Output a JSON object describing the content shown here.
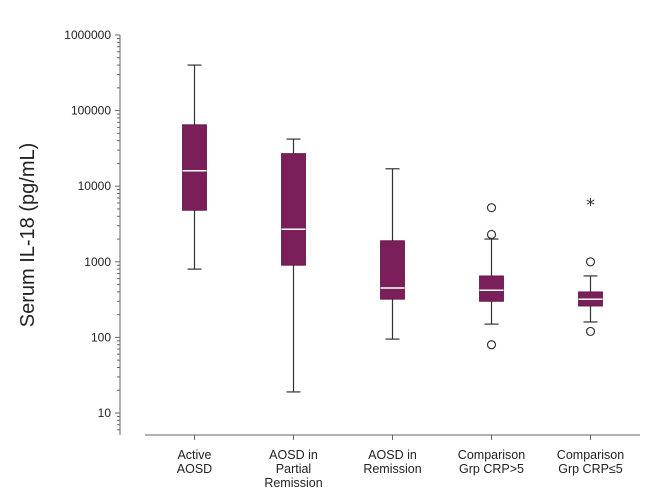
{
  "chart_data": {
    "type": "boxplot",
    "ylabel": "Serum IL-18 (pg/mL)",
    "yscale": "log",
    "ylim": [
      10,
      1000000
    ],
    "yticks": [
      {
        "value": 10,
        "label": "10"
      },
      {
        "value": 100,
        "label": "100"
      },
      {
        "value": 1000,
        "label": "1000"
      },
      {
        "value": 10000,
        "label": "10000"
      },
      {
        "value": 100000,
        "label": "100000"
      },
      {
        "value": 1000000,
        "label": "1000000"
      }
    ],
    "box_color": "#7b1f5a",
    "categories": [
      {
        "label_lines": [
          "Active",
          "AOSD"
        ],
        "whisker_low": 800,
        "q1": 4800,
        "median": 16000,
        "q3": 65000,
        "whisker_high": 400000,
        "outliers": [],
        "extremes": []
      },
      {
        "label_lines": [
          "AOSD in",
          "Partial",
          "Remission"
        ],
        "whisker_low": 19,
        "q1": 900,
        "median": 2700,
        "q3": 27000,
        "whisker_high": 42000,
        "outliers": [],
        "extremes": []
      },
      {
        "label_lines": [
          "AOSD in",
          "Remission"
        ],
        "whisker_low": 95,
        "q1": 320,
        "median": 450,
        "q3": 1900,
        "whisker_high": 17000,
        "outliers": [],
        "extremes": []
      },
      {
        "label_lines": [
          "Comparison",
          "Grp CRP>5"
        ],
        "whisker_low": 150,
        "q1": 300,
        "median": 420,
        "q3": 650,
        "whisker_high": 2000,
        "outliers": [
          80,
          2300,
          5200
        ],
        "extremes": []
      },
      {
        "label_lines": [
          "Comparison",
          "Grp CRP≤5"
        ],
        "whisker_low": 160,
        "q1": 260,
        "median": 320,
        "q3": 400,
        "whisker_high": 650,
        "outliers": [
          120,
          1000
        ],
        "extremes": [
          6000
        ]
      }
    ]
  }
}
